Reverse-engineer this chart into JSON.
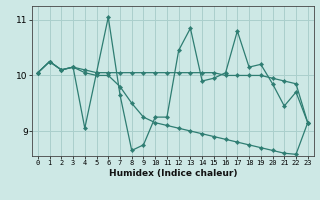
{
  "xlabel": "Humidex (Indice chaleur)",
  "background_color": "#cde8e5",
  "line_color": "#2e7d72",
  "grid_color": "#aacfcc",
  "xlim": [
    -0.5,
    23.5
  ],
  "ylim": [
    8.55,
    11.25
  ],
  "yticks": [
    9,
    10,
    11
  ],
  "xticks": [
    0,
    1,
    2,
    3,
    4,
    5,
    6,
    7,
    8,
    9,
    10,
    11,
    12,
    13,
    14,
    15,
    16,
    17,
    18,
    19,
    20,
    21,
    22,
    23
  ],
  "series1_x": [
    0,
    1,
    2,
    3,
    4,
    5,
    6,
    7,
    8,
    9,
    10,
    11,
    12,
    13,
    14,
    15,
    16,
    17,
    18,
    19,
    20,
    21,
    22,
    23
  ],
  "series1_y": [
    10.05,
    10.25,
    10.1,
    10.15,
    9.05,
    10.05,
    11.05,
    9.65,
    8.65,
    8.75,
    9.25,
    9.25,
    10.45,
    10.85,
    9.9,
    9.95,
    10.05,
    10.8,
    10.15,
    10.2,
    9.85,
    9.45,
    9.7,
    9.15
  ],
  "series2_x": [
    0,
    1,
    2,
    3,
    4,
    5,
    6,
    7,
    8,
    9,
    10,
    11,
    12,
    13,
    14,
    15,
    16,
    17,
    18,
    19,
    20,
    21,
    22,
    23
  ],
  "series2_y": [
    10.05,
    10.25,
    10.1,
    10.15,
    10.1,
    10.05,
    10.05,
    10.05,
    10.05,
    10.05,
    10.05,
    10.05,
    10.05,
    10.05,
    10.05,
    10.05,
    10.0,
    10.0,
    10.0,
    10.0,
    9.95,
    9.9,
    9.85,
    9.15
  ],
  "series3_x": [
    0,
    1,
    2,
    3,
    4,
    5,
    6,
    7,
    8,
    9,
    10,
    11,
    12,
    13,
    14,
    15,
    16,
    17,
    18,
    19,
    20,
    21,
    22,
    23
  ],
  "series3_y": [
    10.05,
    10.25,
    10.1,
    10.15,
    10.05,
    10.0,
    10.0,
    9.8,
    9.5,
    9.25,
    9.15,
    9.1,
    9.05,
    9.0,
    8.95,
    8.9,
    8.85,
    8.8,
    8.75,
    8.7,
    8.65,
    8.6,
    8.58,
    9.15
  ]
}
